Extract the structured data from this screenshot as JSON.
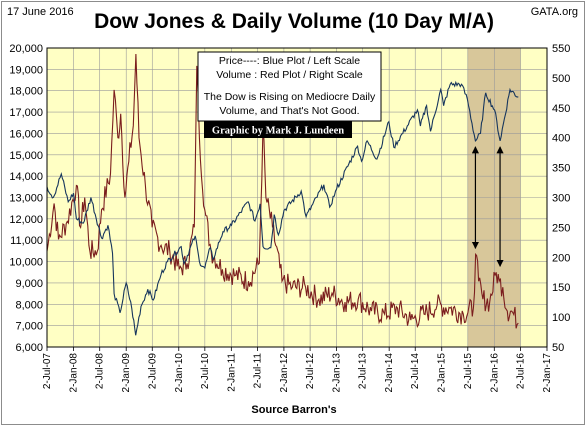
{
  "header": {
    "date": "17 June 2016",
    "site": "GATA.org",
    "title": "Dow Jones & Daily Volume (10 Day M/A)"
  },
  "legend": {
    "line1": "Price----: Blue Plot / Left Scale",
    "line2": "Volume : Red Plot / Right Scale",
    "line3": "The Dow is Rising on Mediocre Daily",
    "line4": "Volume, and That's Not Good."
  },
  "credit": "Graphic by Mark J. Lundeen",
  "footer": "Source Barron's",
  "colors": {
    "plot_bg": "#ffffc4",
    "highlight": "#d8c79a",
    "dow": "#17365d",
    "volume": "#7b1e1e",
    "grid": "#9a9a9a"
  },
  "chart_data": {
    "type": "line",
    "title": "Dow Jones & Daily Volume (10 Day M/A)",
    "xlabel": "Source Barron's",
    "x_ticks": [
      "2-Jul-07",
      "2-Jan-08",
      "2-Jul-08",
      "2-Jan-09",
      "2-Jul-09",
      "2-Jan-10",
      "2-Jul-10",
      "2-Jan-11",
      "2-Jul-11",
      "2-Jan-12",
      "2-Jul-12",
      "2-Jan-13",
      "2-Jul-13",
      "2-Jan-14",
      "2-Jul-14",
      "2-Jan-15",
      "2-Jul-15",
      "2-Jan-16",
      "2-Jul-16",
      "2-Jan-17"
    ],
    "y_left": {
      "min": 6000,
      "max": 20000,
      "step": 1000,
      "ticks": [
        "20,000",
        "19,000",
        "18,000",
        "17,000",
        "16,000",
        "15,000",
        "14,000",
        "13,000",
        "12,000",
        "11,000",
        "10,000",
        "9,000",
        "8,000",
        "7,000",
        "6,000"
      ]
    },
    "y_right": {
      "min": 50,
      "max": 550,
      "step": 50,
      "ticks": [
        "550",
        "500",
        "450",
        "400",
        "350",
        "300",
        "250",
        "200",
        "150",
        "100",
        "50"
      ]
    },
    "grid": true,
    "highlight_range": [
      "2-Jul-15",
      "2-Jul-16"
    ],
    "series": [
      {
        "name": "Dow Jones (Price)",
        "axis": "left",
        "points": [
          [
            "2007-07-02",
            13500
          ],
          [
            "2007-08-15",
            13000
          ],
          [
            "2007-10-09",
            14100
          ],
          [
            "2007-11-26",
            12800
          ],
          [
            "2008-01-02",
            13200
          ],
          [
            "2008-01-22",
            12000
          ],
          [
            "2008-03-10",
            11800
          ],
          [
            "2008-05-02",
            13000
          ],
          [
            "2008-07-15",
            11100
          ],
          [
            "2008-08-28",
            11700
          ],
          [
            "2008-09-29",
            10400
          ],
          [
            "2008-10-10",
            8500
          ],
          [
            "2008-11-20",
            7600
          ],
          [
            "2009-01-02",
            9000
          ],
          [
            "2009-02-10",
            7800
          ],
          [
            "2009-03-09",
            6550
          ],
          [
            "2009-04-15",
            7900
          ],
          [
            "2009-06-01",
            8700
          ],
          [
            "2009-07-09",
            8200
          ],
          [
            "2009-09-01",
            9400
          ],
          [
            "2009-10-15",
            10000
          ],
          [
            "2010-01-19",
            10700
          ],
          [
            "2010-02-08",
            9900
          ],
          [
            "2010-04-26",
            11200
          ],
          [
            "2010-05-25",
            10000
          ],
          [
            "2010-07-02",
            9700
          ],
          [
            "2010-08-09",
            10650
          ],
          [
            "2010-08-27",
            10100
          ],
          [
            "2010-11-05",
            11400
          ],
          [
            "2011-01-03",
            11700
          ],
          [
            "2011-04-29",
            12800
          ],
          [
            "2011-06-15",
            11900
          ],
          [
            "2011-07-21",
            12700
          ],
          [
            "2011-08-10",
            10700
          ],
          [
            "2011-10-03",
            10650
          ],
          [
            "2011-10-27",
            12200
          ],
          [
            "2011-11-25",
            11250
          ],
          [
            "2012-01-03",
            12400
          ],
          [
            "2012-05-01",
            13300
          ],
          [
            "2012-06-04",
            12100
          ],
          [
            "2012-10-05",
            13600
          ],
          [
            "2012-11-15",
            12550
          ],
          [
            "2013-01-02",
            13400
          ],
          [
            "2013-05-28",
            15400
          ],
          [
            "2013-06-24",
            14700
          ],
          [
            "2013-08-02",
            15650
          ],
          [
            "2013-10-09",
            14800
          ],
          [
            "2013-12-31",
            16550
          ],
          [
            "2014-02-03",
            15350
          ],
          [
            "2014-07-17",
            17100
          ],
          [
            "2014-08-07",
            16350
          ],
          [
            "2014-09-19",
            17300
          ],
          [
            "2014-10-16",
            16100
          ],
          [
            "2014-12-26",
            18050
          ],
          [
            "2015-01-15",
            17300
          ],
          [
            "2015-03-02",
            18300
          ],
          [
            "2015-05-19",
            18300
          ],
          [
            "2015-06-29",
            17600
          ],
          [
            "2015-08-24",
            15650
          ],
          [
            "2015-09-28",
            16000
          ],
          [
            "2015-11-03",
            17900
          ],
          [
            "2016-01-04",
            17100
          ],
          [
            "2016-02-11",
            15650
          ],
          [
            "2016-04-20",
            18050
          ],
          [
            "2016-06-17",
            17700
          ]
        ]
      },
      {
        "name": "Daily Volume (10 Day M/A)",
        "axis": "right",
        "points": [
          [
            "2007-07-02",
            210
          ],
          [
            "2007-08-20",
            290
          ],
          [
            "2007-09-20",
            230
          ],
          [
            "2007-11-20",
            260
          ],
          [
            "2008-01-22",
            320
          ],
          [
            "2008-02-20",
            250
          ],
          [
            "2008-03-20",
            300
          ],
          [
            "2008-04-25",
            210
          ],
          [
            "2008-06-15",
            210
          ],
          [
            "2008-07-15",
            280
          ],
          [
            "2008-09-15",
            340
          ],
          [
            "2008-10-10",
            480
          ],
          [
            "2008-11-05",
            400
          ],
          [
            "2008-11-25",
            440
          ],
          [
            "2008-12-24",
            300
          ],
          [
            "2009-01-20",
            360
          ],
          [
            "2009-02-20",
            420
          ],
          [
            "2009-03-10",
            540
          ],
          [
            "2009-04-01",
            400
          ],
          [
            "2009-05-15",
            320
          ],
          [
            "2009-07-01",
            250
          ],
          [
            "2009-09-01",
            220
          ],
          [
            "2009-11-01",
            210
          ],
          [
            "2010-01-05",
            180
          ],
          [
            "2010-03-01",
            190
          ],
          [
            "2010-04-20",
            250
          ],
          [
            "2010-05-07",
            520
          ],
          [
            "2010-05-25",
            400
          ],
          [
            "2010-07-01",
            280
          ],
          [
            "2010-08-15",
            210
          ],
          [
            "2010-11-01",
            180
          ],
          [
            "2011-02-01",
            170
          ],
          [
            "2011-05-01",
            160
          ],
          [
            "2011-07-15",
            190
          ],
          [
            "2011-08-10",
            420
          ],
          [
            "2011-08-30",
            300
          ],
          [
            "2011-10-15",
            250
          ],
          [
            "2011-12-20",
            160
          ],
          [
            "2012-03-01",
            150
          ],
          [
            "2012-06-01",
            150
          ],
          [
            "2012-09-01",
            130
          ],
          [
            "2012-12-01",
            140
          ],
          [
            "2013-03-01",
            125
          ],
          [
            "2013-06-01",
            130
          ],
          [
            "2013-09-01",
            110
          ],
          [
            "2013-12-01",
            105
          ],
          [
            "2014-03-01",
            115
          ],
          [
            "2014-06-01",
            95
          ],
          [
            "2014-09-01",
            105
          ],
          [
            "2014-12-01",
            120
          ],
          [
            "2015-03-01",
            115
          ],
          [
            "2015-06-01",
            105
          ],
          [
            "2015-08-10",
            115
          ],
          [
            "2015-08-25",
            205
          ],
          [
            "2015-09-15",
            160
          ],
          [
            "2015-10-15",
            130
          ],
          [
            "2015-12-01",
            125
          ],
          [
            "2016-01-15",
            175
          ],
          [
            "2016-02-05",
            160
          ],
          [
            "2016-03-01",
            150
          ],
          [
            "2016-04-01",
            110
          ],
          [
            "2016-05-01",
            110
          ],
          [
            "2016-06-17",
            90
          ]
        ]
      }
    ],
    "annotations": [
      {
        "type": "double-arrow",
        "x": "2015-08-24",
        "from": {
          "axis": "left",
          "value": 15650
        },
        "to": {
          "axis": "right",
          "value": 205
        }
      },
      {
        "type": "double-arrow",
        "x": "2016-02-11",
        "from": {
          "axis": "left",
          "value": 15650
        },
        "to": {
          "axis": "right",
          "value": 175
        }
      }
    ]
  }
}
